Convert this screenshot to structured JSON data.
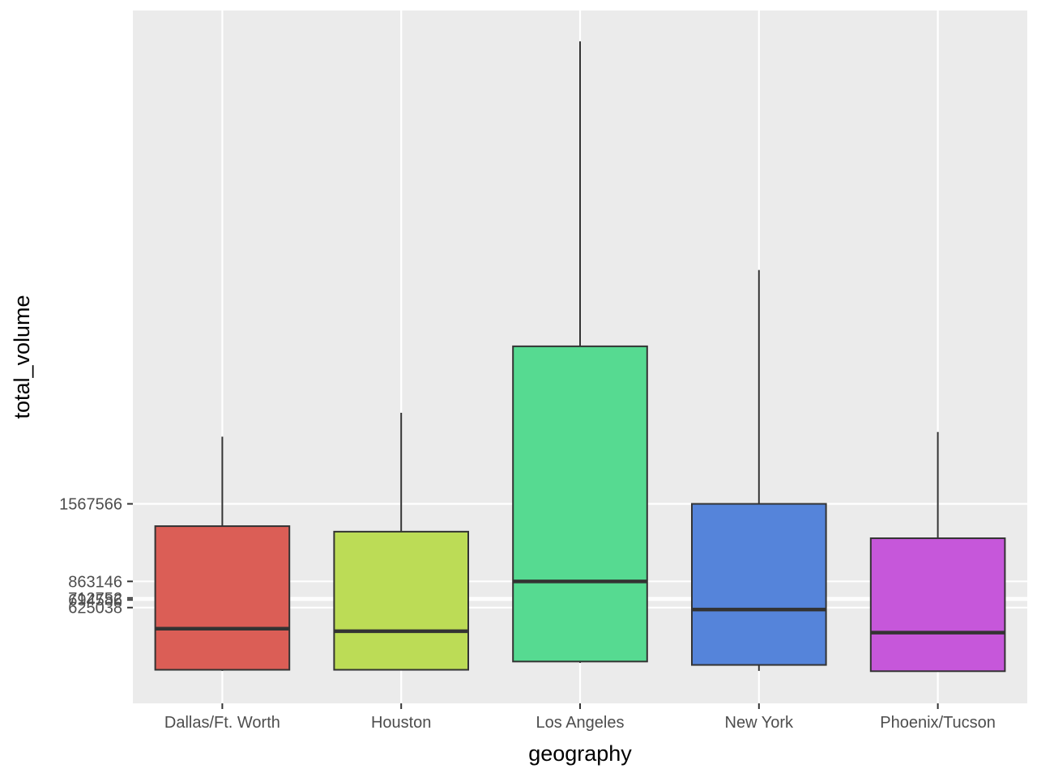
{
  "chart_data": {
    "type": "box",
    "xlabel": "geography",
    "ylabel": "total_volume",
    "categories": [
      "Dallas/Ft. Worth",
      "Houston",
      "Los Angeles",
      "New York",
      "Phoenix/Tucson"
    ],
    "boxes": [
      {
        "category": "Dallas/Ft. Worth",
        "min": 50000,
        "q1": 60000,
        "median": 433000,
        "q3": 1365000,
        "max": 2178000,
        "color": "#db5e56"
      },
      {
        "category": "Houston",
        "min": 57000,
        "q1": 60000,
        "median": 410000,
        "q3": 1315000,
        "max": 2395000,
        "color": "#bcdc56"
      },
      {
        "category": "Los Angeles",
        "min": 123000,
        "q1": 135000,
        "median": 863146,
        "q3": 2999000,
        "max": 5770000,
        "color": "#56da91"
      },
      {
        "category": "New York",
        "min": 50000,
        "q1": 104000,
        "median": 607000,
        "q3": 1567566,
        "max": 3692000,
        "color": "#5584da"
      },
      {
        "category": "Phoenix/Tucson",
        "min": 45000,
        "q1": 47000,
        "median": 398000,
        "q3": 1255000,
        "max": 2220000,
        "color": "#c657da"
      }
    ],
    "y_ticks": [
      {
        "value": 625038,
        "label": "625038"
      },
      {
        "value": 694586,
        "label": "694586"
      },
      {
        "value": 712752,
        "label": "712752"
      },
      {
        "value": 863146,
        "label": "863146"
      },
      {
        "value": 1567566,
        "label": "1567566"
      }
    ],
    "ylim": [
      -245000,
      6050000
    ],
    "grid": true,
    "legend": "none",
    "panel_background": "#ebebeb",
    "grid_color": "#ffffff",
    "box_outline": "#333333"
  }
}
